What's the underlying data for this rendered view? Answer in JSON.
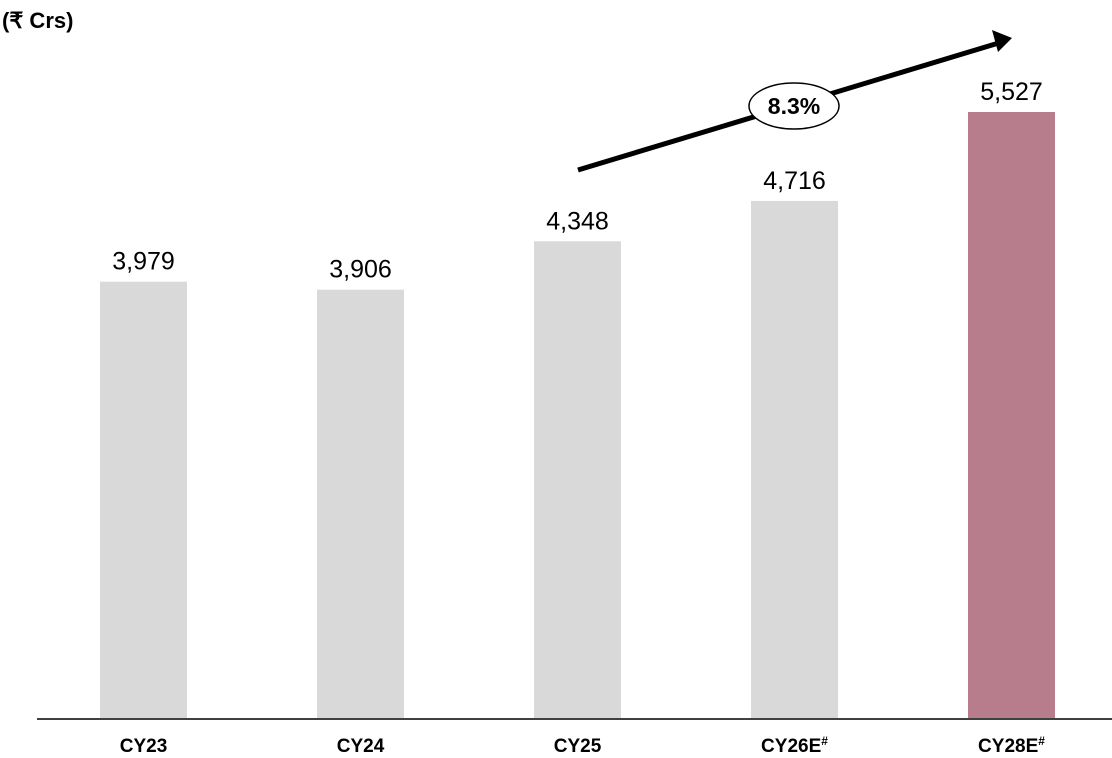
{
  "unit_label": "(₹ Crs)",
  "cagr_label": "8.3%",
  "colors": {
    "actual": "#d9d9d9",
    "highlight": "#b87d8c",
    "axis": "#000000",
    "text": "#000000"
  },
  "chart_data": {
    "type": "bar",
    "categories": [
      {
        "base": "CY23",
        "sup": ""
      },
      {
        "base": "CY24",
        "sup": ""
      },
      {
        "base": "CY25",
        "sup": ""
      },
      {
        "base": "CY26E",
        "sup": "#"
      },
      {
        "base": "CY28E",
        "sup": "#"
      }
    ],
    "values": [
      3979,
      3906,
      4348,
      4716,
      5527
    ],
    "value_labels": [
      "3,979",
      "3,906",
      "4,348",
      "4,716",
      "5,527"
    ],
    "highlight_index": 4,
    "ylim": [
      0,
      6000
    ],
    "title": "",
    "xlabel": "",
    "ylabel": "(₹ Crs)",
    "annotation": {
      "text": "8.3%",
      "from_category": 2,
      "to_category": 4
    },
    "grid": false,
    "legend": "none"
  }
}
